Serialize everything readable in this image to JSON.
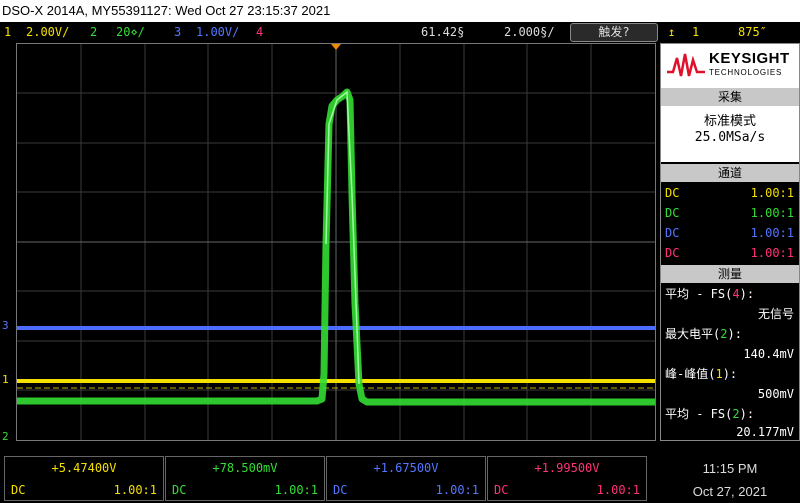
{
  "title": "DSO-X 2014A, MY55391127: Wed Oct 27 23:15:37 2021",
  "channels": [
    {
      "num": "1",
      "scale": "2.00V/",
      "color": "#f4e000"
    },
    {
      "num": "2",
      "scale": "20⋄/",
      "color": "#33dd33"
    },
    {
      "num": "3",
      "scale": "1.00V/",
      "color": "#5577ff"
    },
    {
      "num": "4",
      "scale": "",
      "color": "#ff3377"
    }
  ],
  "timebar": {
    "delay": "61.42§",
    "timebase": "2.000§/"
  },
  "trigger_button": "触发?",
  "trigger_info": {
    "source": "1",
    "level": "875″"
  },
  "sidebar": {
    "brand": "KEYSIGHT",
    "brand_sub": "TECHNOLOGIES",
    "acquire": {
      "header": "采集",
      "mode": "标准模式",
      "rate": "25.0MSa/s"
    },
    "channels": {
      "header": "通道",
      "rows": [
        {
          "coupling": "DC",
          "probe": "1.00:1",
          "color": "#f4e000"
        },
        {
          "coupling": "DC",
          "probe": "1.00:1",
          "color": "#33dd33"
        },
        {
          "coupling": "DC",
          "probe": "1.00:1",
          "color": "#5577ff"
        },
        {
          "coupling": "DC",
          "probe": "1.00:1",
          "color": "#ff3377"
        }
      ]
    },
    "measure": {
      "header": "测量",
      "items": [
        {
          "label": "平均 - FS(",
          "ch": "4",
          "end": "):",
          "value": "无信号",
          "color": "#ff3377"
        },
        {
          "label": "最大电平(",
          "ch": "2",
          "end": "):",
          "value": "140.4mV",
          "color": "#33dd33"
        },
        {
          "label": "峰-峰值(",
          "ch": "1",
          "end": "):",
          "value": "500mV",
          "color": "#f4e000"
        },
        {
          "label": "平均 - FS(",
          "ch": "2",
          "end": "):",
          "value": "20.177mV",
          "color": "#33dd33"
        }
      ]
    }
  },
  "bottom": [
    {
      "value": "+5.47400V",
      "coupling": "DC",
      "probe": "1.00:1",
      "color": "#f4e000"
    },
    {
      "value": "+78.500mV",
      "coupling": "DC",
      "probe": "1.00:1",
      "color": "#33dd33"
    },
    {
      "value": "+1.67500V",
      "coupling": "DC",
      "probe": "1.00:1",
      "color": "#5577ff"
    },
    {
      "value": "+1.99500V",
      "coupling": "DC",
      "probe": "1.00:1",
      "color": "#ff3377"
    }
  ],
  "clock": {
    "time": "11:15 PM",
    "date": "Oct 27, 2021"
  },
  "markers": {
    "ch3": "3",
    "ch1": "1",
    "ch2": "2"
  }
}
